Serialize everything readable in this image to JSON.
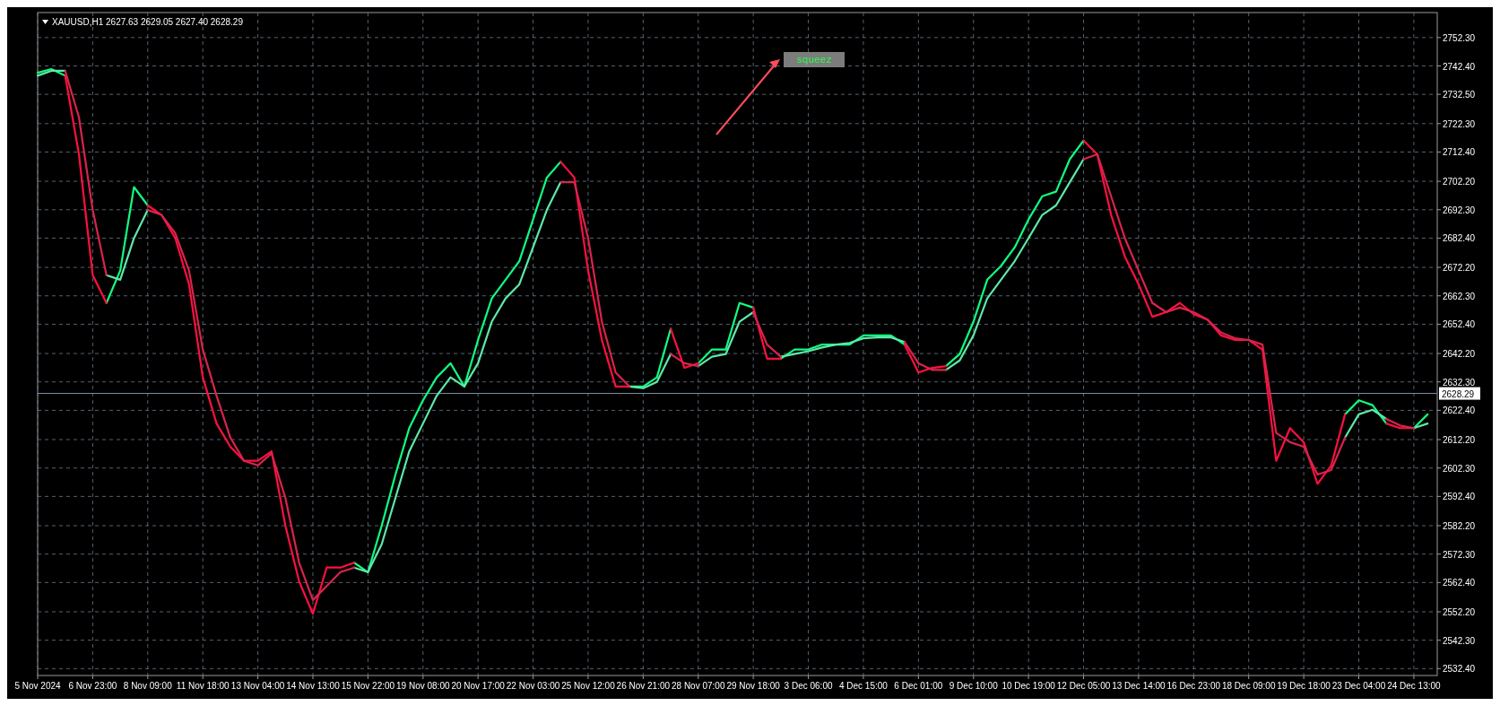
{
  "chart_data": {
    "type": "line",
    "title": "XAUUSD,H1  2627.63 2629.05 2627.40 2628.29",
    "annotations": [
      "squeez"
    ],
    "categories": [
      "5 Nov 2024",
      null,
      null,
      null,
      "6 Nov 23:00",
      null,
      null,
      null,
      "8 Nov 09:00",
      null,
      null,
      null,
      "11 Nov 18:00",
      null,
      null,
      null,
      "13 Nov 04:00",
      null,
      null,
      null,
      "14 Nov 13:00",
      null,
      null,
      null,
      "15 Nov 22:00",
      null,
      null,
      null,
      "19 Nov 08:00",
      null,
      null,
      null,
      "20 Nov 17:00",
      null,
      null,
      null,
      "22 Nov 03:00",
      null,
      null,
      null,
      "25 Nov 12:00",
      null,
      null,
      null,
      "26 Nov 21:00",
      null,
      null,
      null,
      "28 Nov 07:00",
      null,
      null,
      null,
      "29 Nov 18:00",
      null,
      null,
      null,
      "3 Dec 06:00",
      null,
      null,
      null,
      "4 Dec 15:00",
      null,
      null,
      null,
      "6 Dec 01:00",
      null,
      null,
      null,
      "9 Dec 10:00",
      null,
      null,
      null,
      "10 Dec 19:00",
      null,
      null,
      null,
      "12 Dec 05:00",
      null,
      null,
      null,
      "13 Dec 14:00",
      null,
      null,
      null,
      "16 Dec 23:00",
      null,
      null,
      null,
      "18 Dec 09:00",
      null,
      null,
      null,
      "19 Dec 18:00",
      null,
      null,
      null,
      "23 Dec 04:00",
      null,
      null,
      null,
      "24 Dec 13:00",
      null
    ],
    "ylim": [
      2530,
      2761
    ],
    "yticks": [
      {
        "value": 2752.3,
        "label": "2752.30"
      },
      {
        "value": 2742.4,
        "label": "2742.40"
      },
      {
        "value": 2732.5,
        "label": "2732.50"
      },
      {
        "value": 2722.3,
        "label": "2722.30"
      },
      {
        "value": 2712.4,
        "label": "2712.40"
      },
      {
        "value": 2702.2,
        "label": "2702.20"
      },
      {
        "value": 2692.3,
        "label": "2692.30"
      },
      {
        "value": 2682.4,
        "label": "2682.40"
      },
      {
        "value": 2672.2,
        "label": "2672.20"
      },
      {
        "value": 2662.3,
        "label": "2662.30"
      },
      {
        "value": 2652.4,
        "label": "2652.40"
      },
      {
        "value": 2642.2,
        "label": "2642.20"
      },
      {
        "value": 2632.3,
        "label": "2632.30"
      },
      {
        "value": 2622.4,
        "label": "2622.40"
      },
      {
        "value": 2612.2,
        "label": "2612.20"
      },
      {
        "value": 2602.3,
        "label": "2602.30"
      },
      {
        "value": 2592.4,
        "label": "2592.40"
      },
      {
        "value": 2582.2,
        "label": "2582.20"
      },
      {
        "value": 2572.3,
        "label": "2572.30"
      },
      {
        "value": 2562.4,
        "label": "2562.40"
      },
      {
        "value": 2552.2,
        "label": "2552.20"
      },
      {
        "value": 2542.3,
        "label": "2542.30"
      },
      {
        "value": 2532.4,
        "label": "2532.40"
      }
    ],
    "grid": true,
    "line_style": "solid",
    "ref_lines": [
      {
        "axis": "y",
        "value": 2628.29,
        "label": "2628.29",
        "color": "#7f8fa6"
      }
    ],
    "series": [
      {
        "color": "#10ff80",
        "values": [
          2740.0,
          2741.3,
          2739.0,
          null,
          null,
          2659.8,
          2671.1,
          2700.2,
          2693.8,
          null,
          null,
          null,
          null,
          null,
          null,
          null,
          null,
          null,
          null,
          null,
          null,
          null,
          null,
          2569.3,
          2566.0,
          2582.2,
          2600.0,
          2616.2,
          2625.9,
          2633.9,
          2638.8,
          2630.7,
          2646.9,
          2661.4,
          2667.9,
          2674.4,
          2688.9,
          2703.5,
          2709.0,
          null,
          null,
          null,
          null,
          2630.7,
          2630.7,
          2633.9,
          2650.8,
          null,
          2638.8,
          2643.6,
          2643.6,
          2659.8,
          2658.2,
          null,
          2640.4,
          2643.6,
          2643.6,
          2645.3,
          2645.3,
          2645.3,
          2648.5,
          2648.5,
          2648.5,
          2645.3,
          null,
          null,
          2637.8,
          2642.0,
          2653.3,
          2667.9,
          2672.7,
          2679.2,
          2688.9,
          2697.0,
          2698.6,
          2709.9,
          2716.4,
          null,
          null,
          null,
          null,
          null,
          null,
          null,
          null,
          null,
          null,
          null,
          null,
          null,
          null,
          null,
          null,
          null,
          null,
          2621.0,
          2625.9,
          2624.2,
          2617.8,
          null,
          2616.2,
          2621.0
        ]
      },
      {
        "color": "#ff1040",
        "values": [
          null,
          null,
          2739.0,
          2711.6,
          2669.5,
          2659.8,
          null,
          null,
          2693.8,
          2690.5,
          2682.4,
          2666.3,
          2633.9,
          2617.8,
          2609.7,
          2604.8,
          2604.8,
          2608.1,
          2582.2,
          2562.8,
          2551.5,
          2567.6,
          2567.6,
          2569.3,
          null,
          null,
          null,
          null,
          null,
          null,
          null,
          null,
          null,
          null,
          null,
          null,
          null,
          null,
          2709.0,
          2703.5,
          2671.1,
          2646.9,
          2630.7,
          2630.7,
          null,
          null,
          2650.8,
          2637.2,
          2638.8,
          null,
          null,
          null,
          2658.2,
          2640.4,
          2640.4,
          null,
          null,
          null,
          null,
          null,
          null,
          null,
          null,
          2645.3,
          2635.6,
          2637.2,
          2637.8,
          null,
          null,
          null,
          null,
          null,
          null,
          null,
          null,
          null,
          2716.4,
          2711.6,
          2690.5,
          2676.0,
          2666.3,
          2655.0,
          2656.6,
          2659.8,
          2655.9,
          2654.0,
          2648.5,
          2646.9,
          2646.9,
          2643.6,
          2604.8,
          2616.2,
          2611.3,
          2596.8,
          2603.2,
          2621.0,
          null,
          null,
          2617.8,
          2616.2,
          2616.2,
          null
        ]
      },
      {
        "color": "#5ee8a8",
        "values": [
          2739.0,
          2740.7,
          2740.7,
          null,
          null,
          2669.5,
          2667.9,
          2682.4,
          2692.2,
          null,
          null,
          null,
          null,
          null,
          null,
          null,
          null,
          null,
          null,
          null,
          null,
          null,
          null,
          2567.6,
          2566.0,
          2575.7,
          2591.9,
          2608.1,
          2617.8,
          2627.5,
          2633.9,
          2630.7,
          2638.8,
          2653.3,
          2661.4,
          2666.3,
          2679.2,
          2692.2,
          2701.9,
          null,
          null,
          null,
          null,
          2630.7,
          2630.1,
          2632.3,
          2642.0,
          null,
          2637.8,
          2641.1,
          2642.0,
          2653.3,
          2656.6,
          null,
          2641.1,
          2642.0,
          2643.0,
          2644.3,
          2645.3,
          2645.9,
          2647.5,
          2647.8,
          2647.8,
          2646.2,
          null,
          null,
          2636.5,
          2639.8,
          2648.5,
          2661.4,
          2667.9,
          2674.4,
          2682.4,
          2690.5,
          2693.8,
          2701.9,
          2709.9,
          null,
          null,
          null,
          null,
          null,
          null,
          null,
          null,
          null,
          null,
          null,
          null,
          null,
          null,
          null,
          null,
          null,
          null,
          2612.9,
          2621.0,
          2622.6,
          2619.4,
          null,
          2616.2,
          2617.8
        ]
      },
      {
        "color": "#d8244c",
        "values": [
          null,
          null,
          2740.7,
          2724.5,
          2692.2,
          2669.5,
          null,
          null,
          2692.2,
          2690.5,
          2684.1,
          2671.1,
          2643.6,
          2627.5,
          2612.9,
          2604.8,
          2603.2,
          2607.4,
          2591.9,
          2569.3,
          2556.3,
          2561.2,
          2566.0,
          2567.6,
          null,
          null,
          null,
          null,
          null,
          null,
          null,
          null,
          null,
          null,
          null,
          null,
          null,
          null,
          2701.9,
          2701.9,
          2682.4,
          2653.3,
          2635.6,
          2630.7,
          null,
          null,
          2642.0,
          2638.8,
          2637.8,
          null,
          null,
          null,
          2656.6,
          2645.3,
          2641.1,
          null,
          null,
          null,
          null,
          null,
          null,
          null,
          null,
          2646.2,
          2638.8,
          2636.5,
          2636.5,
          null,
          null,
          null,
          null,
          null,
          null,
          null,
          null,
          null,
          2709.9,
          2711.6,
          2697.0,
          2682.4,
          2671.1,
          2659.8,
          2656.6,
          2658.2,
          2656.6,
          2654.0,
          2649.5,
          2647.5,
          2646.9,
          2645.3,
          2614.5,
          2611.3,
          2609.7,
          2600.0,
          2601.6,
          2612.9,
          null,
          null,
          2619.4,
          2617.1,
          2616.2,
          null
        ]
      }
    ]
  }
}
